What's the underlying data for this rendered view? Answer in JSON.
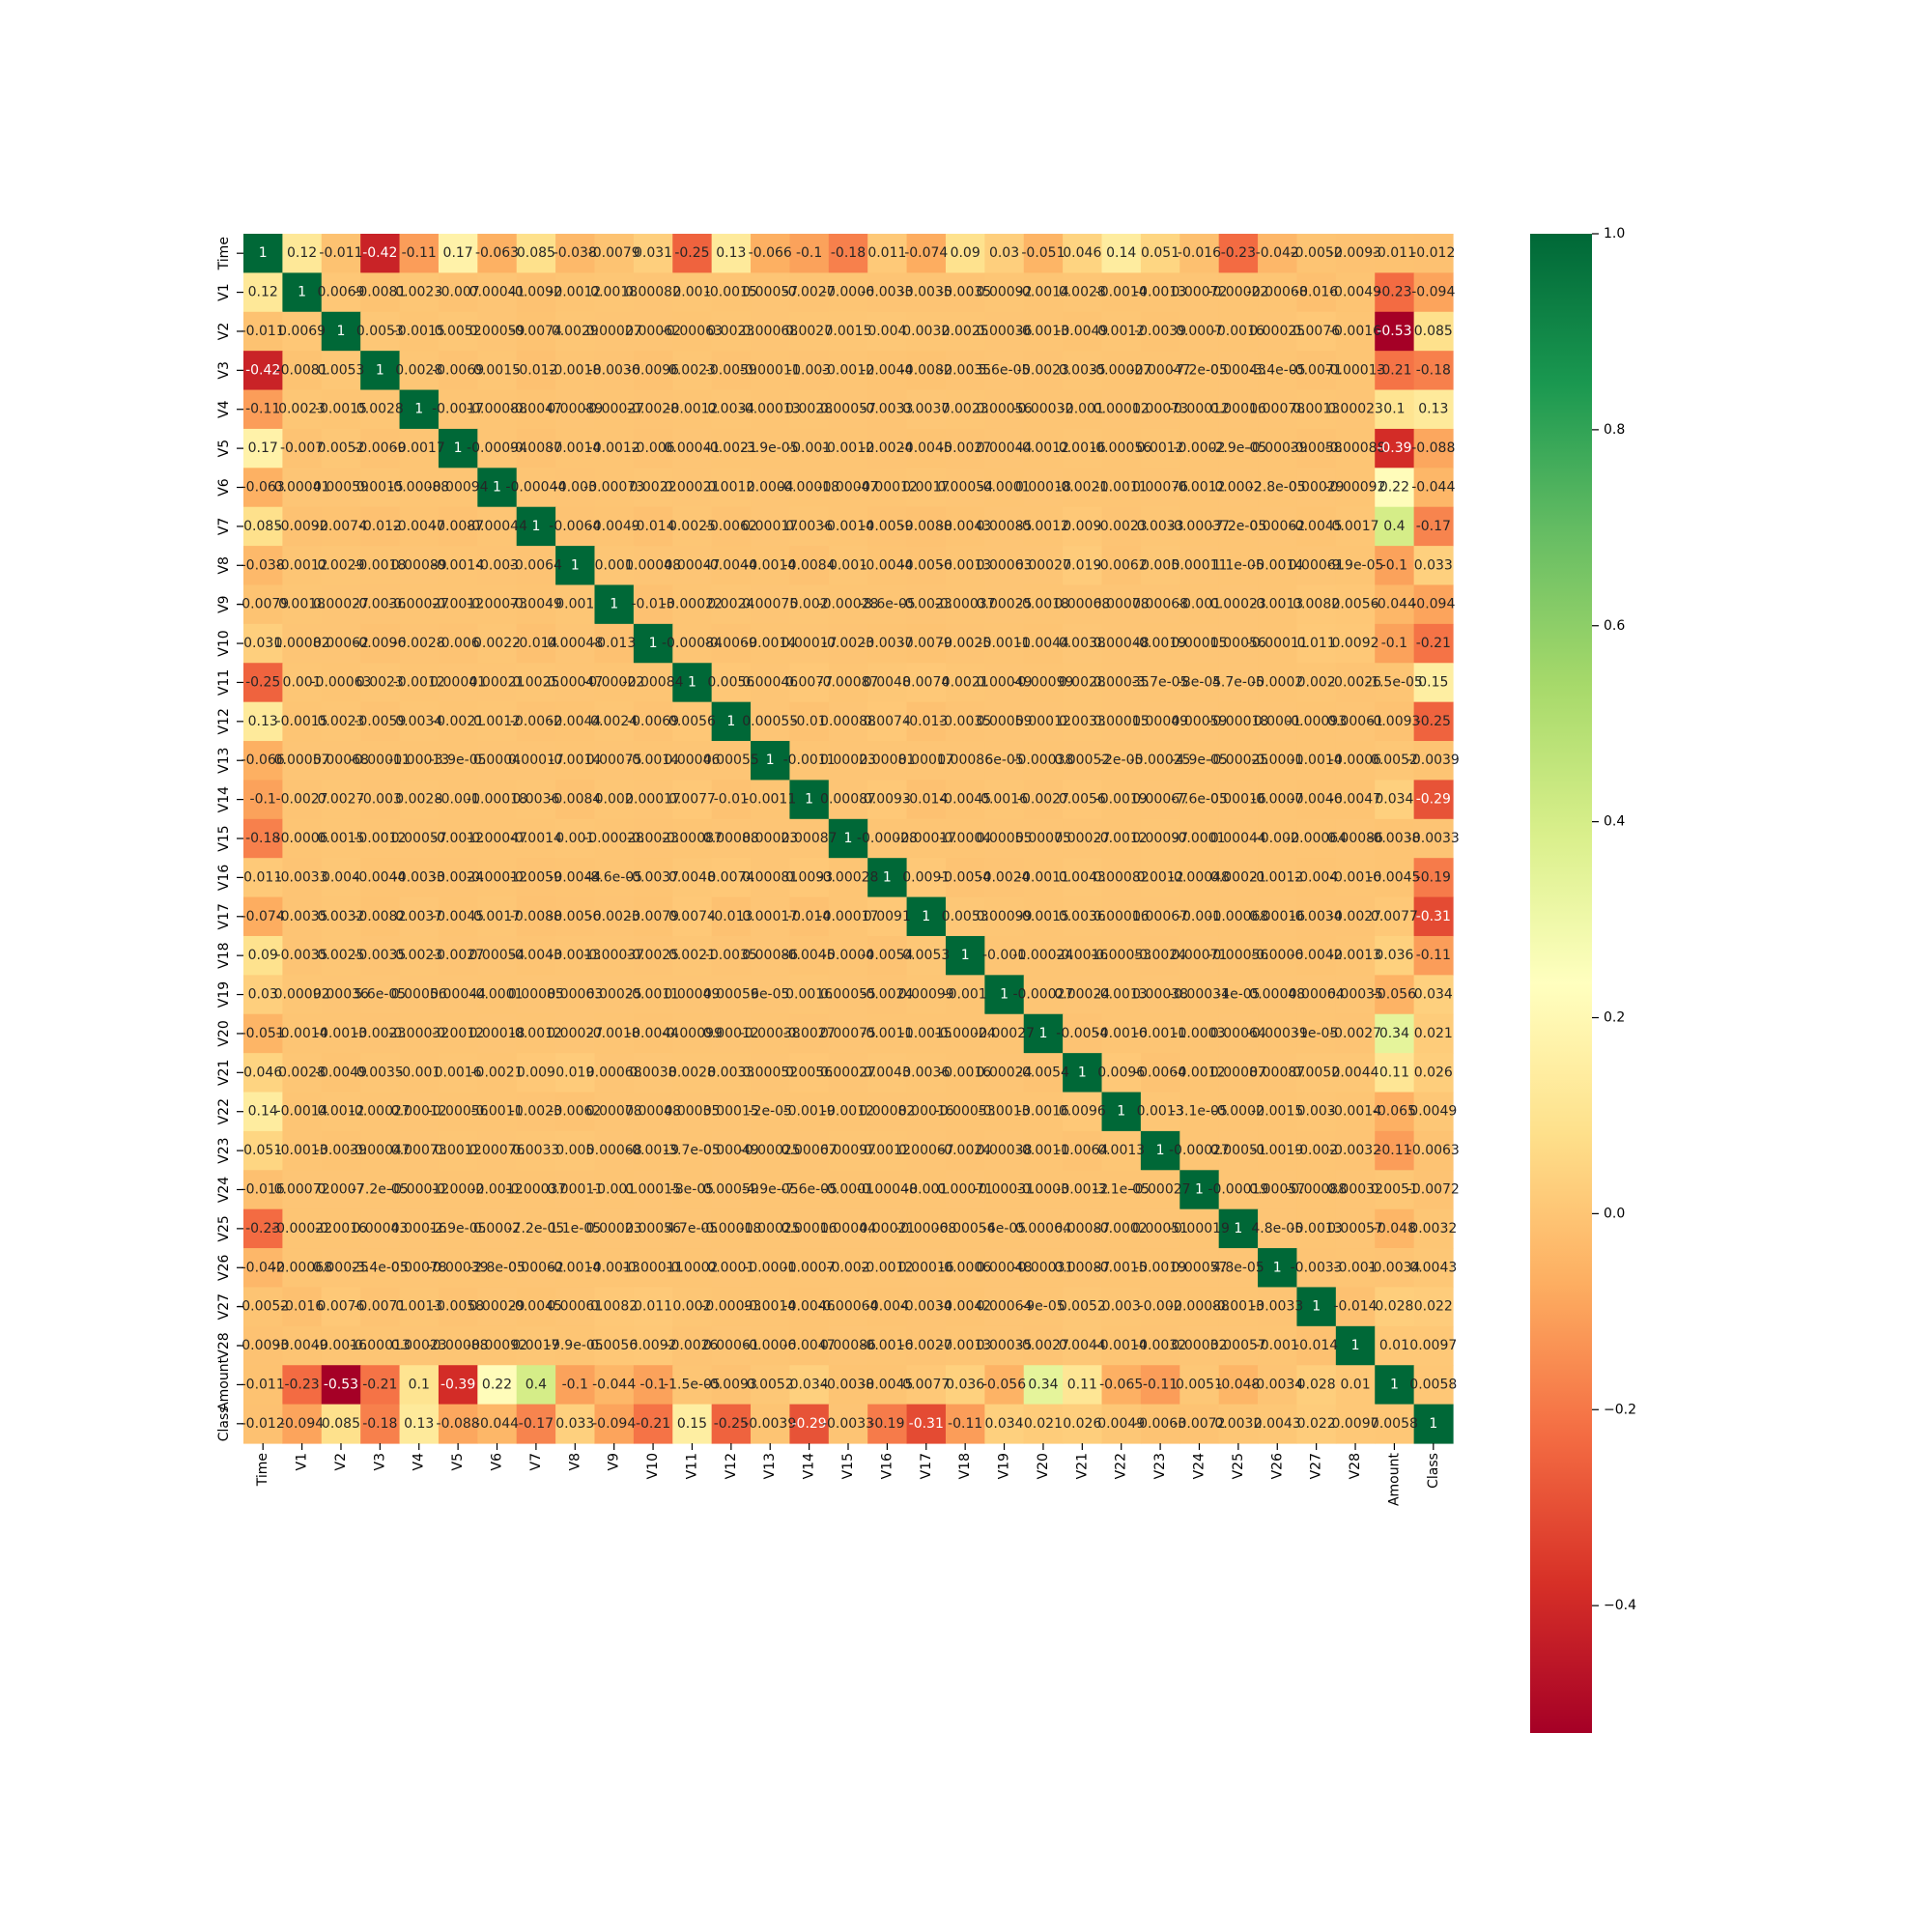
{
  "chart_data": {
    "type": "heatmap",
    "title": "",
    "xlabel": "",
    "ylabel": "",
    "labels": [
      "Time",
      "V1",
      "V2",
      "V3",
      "V4",
      "V5",
      "V6",
      "V7",
      "V8",
      "V9",
      "V10",
      "V11",
      "V12",
      "V13",
      "V14",
      "V15",
      "V16",
      "V17",
      "V18",
      "V19",
      "V20",
      "V21",
      "V22",
      "V23",
      "V24",
      "V25",
      "V26",
      "V27",
      "V28",
      "Amount",
      "Class"
    ],
    "colormap": "RdYlGn",
    "vmin": -0.53,
    "vmax": 1.0,
    "colorbar_ticks": [
      {
        "value": 1.0,
        "label": "1.0"
      },
      {
        "value": 0.8,
        "label": "0.8"
      },
      {
        "value": 0.6,
        "label": "0.6"
      },
      {
        "value": 0.4,
        "label": "0.4"
      },
      {
        "value": 0.2,
        "label": "0.2"
      },
      {
        "value": 0.0,
        "label": "0.0"
      },
      {
        "value": -0.2,
        "label": "−0.2"
      },
      {
        "value": -0.4,
        "label": "−0.4"
      }
    ],
    "matrix": [
      [
        "1",
        "0.12",
        "-0.011",
        "-0.42",
        "-0.11",
        "0.17",
        "-0.063",
        "0.085",
        "-0.038",
        "-0.0079",
        "0.031",
        "-0.25",
        "0.13",
        "-0.066",
        "-0.1",
        "-0.18",
        "0.011",
        "-0.074",
        "0.09",
        "0.03",
        "-0.051",
        "0.046",
        "0.14",
        "0.051",
        "-0.016",
        "-0.23",
        "-0.042",
        "-0.0052",
        "-0.0093",
        "-0.011",
        "-0.012"
      ],
      [
        "0.12",
        "1",
        "0.0069",
        "-0.0081",
        "0.0023",
        "-0.007",
        "0.00041",
        "-0.0092",
        "-0.0012",
        "0.0018",
        "0.00082",
        "0.001",
        "-0.0015",
        "0.00057",
        "-0.0027",
        "-0.0006",
        "-0.0033",
        "-0.0035",
        "-0.0035",
        "0.00092",
        "-0.0014",
        "0.0028",
        "-0.0014",
        "-0.0013",
        "0.00072",
        "-0.00022",
        "-0.00068",
        "-0.016",
        "-0.0049",
        "-0.23",
        "-0.094"
      ],
      [
        "-0.011",
        "0.0069",
        "1",
        "0.0053",
        "-0.0015",
        "0.0052",
        "0.00059",
        "-0.0074",
        "0.0029",
        "0.00027",
        "0.00062",
        "-0.00063",
        "0.0023",
        "0.00068",
        "0.0027",
        "0.0015",
        "0.004",
        "0.0032",
        "0.0025",
        "0.00036",
        "-0.0013",
        "-0.0049",
        "0.0012",
        "-0.0039",
        "0.0007",
        "-0.0016",
        "0.00025",
        "0.0076",
        "-0.0016",
        "-0.53",
        "0.085"
      ],
      [
        "-0.42",
        "-0.0081",
        "0.0053",
        "1",
        "0.0028",
        "-0.0069",
        "0.0015",
        "-0.012",
        "-0.0018",
        "-0.0036",
        "-0.0096",
        "0.0023",
        "-0.0059",
        "-0.00011",
        "-0.003",
        "-0.0012",
        "-0.0044",
        "-0.0082",
        "-0.0035",
        "5.6e-05",
        "-0.0023",
        "0.0035",
        "-0.00027",
        "-0.00047",
        "-7.2e-05",
        "0.00043",
        "-3.4e-05",
        "-0.0071",
        "-0.00013",
        "-0.21",
        "-0.18"
      ],
      [
        "-0.11",
        "0.0023",
        "-0.0015",
        "0.0028",
        "1",
        "-0.0017",
        "-0.00088",
        "-0.0047",
        "0.00089",
        "-0.00027",
        "-0.0028",
        "-0.0012",
        "0.0034",
        "-0.00013",
        "0.0028",
        "0.00057",
        "-0.0033",
        "0.0037",
        "0.0023",
        "0.00056",
        "-0.00032",
        "-0.001",
        "0.00012",
        "0.00073",
        "-0.00012",
        "0.00016",
        "0.00078",
        "0.0013",
        "0.00023",
        "0.1",
        "0.13"
      ],
      [
        "0.17",
        "-0.007",
        "0.0052",
        "-0.0069",
        "-0.0017",
        "1",
        "-0.00094",
        "-0.0087",
        "-0.0014",
        "-0.0012",
        "-0.006",
        "0.00041",
        "-0.0021",
        "-3.9e-05",
        "-0.001",
        "-0.0012",
        "-0.0024",
        "-0.0045",
        "-0.0027",
        "0.00044",
        "-0.0012",
        "0.0016",
        "-0.00056",
        "0.0012",
        "-0.0002",
        "-2.9e-05",
        "-0.00039",
        "-0.0058",
        "-0.00088",
        "-0.39",
        "-0.088"
      ],
      [
        "-0.063",
        "0.00041",
        "0.00059",
        "0.0015",
        "-0.00088",
        "-0.00094",
        "1",
        "-0.00044",
        "-0.003",
        "-0.00073",
        "0.0022",
        "0.00021",
        "0.0012",
        "0.0004",
        "-0.00018",
        "-0.00047",
        "-0.00012",
        "0.0017",
        "0.00054",
        "-0.0001",
        "0.00018",
        "-0.0021",
        "-0.0011",
        "0.00076",
        "-0.0012",
        "0.0002",
        "-2.8e-05",
        "0.00029",
        "-0.00092",
        "0.22",
        "-0.044"
      ],
      [
        "0.085",
        "-0.0092",
        "-0.0074",
        "-0.012",
        "-0.0047",
        "-0.0087",
        "-0.00044",
        "1",
        "-0.0064",
        "-0.0049",
        "-0.014",
        "0.0025",
        "-0.0062",
        "0.00017",
        "0.0036",
        "-0.0014",
        "-0.0059",
        "-0.0088",
        "-0.0043",
        "0.00085",
        "-0.0012",
        "0.009",
        "-0.0023",
        "0.0033",
        "-0.00037",
        "-7.2e-05",
        "0.00062",
        "-0.0045",
        "0.0017",
        "0.4",
        "-0.17"
      ],
      [
        "-0.038",
        "-0.0012",
        "0.0029",
        "-0.0018",
        "0.00089",
        "-0.0014",
        "-0.003",
        "-0.0064",
        "1",
        "0.001",
        "0.00048",
        "0.00047",
        "-0.0044",
        "-0.0014",
        "-0.0084",
        "0.001",
        "-0.0044",
        "-0.0056",
        "-0.0013",
        "0.00063",
        "0.00027",
        "0.019",
        "-0.0062",
        "0.005",
        "0.00011",
        "1.1e-05",
        "-0.0014",
        "0.00061",
        "-9.9e-05",
        "-0.1",
        "0.033"
      ],
      [
        "-0.0079",
        "0.0018",
        "0.00027",
        "-0.0036",
        "-0.00027",
        "-0.0012",
        "-0.00073",
        "-0.0049",
        "0.001",
        "1",
        "-0.013",
        "-0.00022",
        "0.0024",
        "0.00075",
        "0.002",
        "-0.00028",
        "-8.6e-05",
        "-0.0023",
        "-0.00037",
        "0.00025",
        "-0.0018",
        "0.00068",
        "0.00078",
        "0.00068",
        "-0.001",
        "0.00023",
        "-0.0013",
        "0.0082",
        "0.0056",
        "-0.044",
        "-0.094"
      ],
      [
        "0.031",
        "0.00082",
        "0.00062",
        "-0.0096",
        "-0.0028",
        "-0.006",
        "0.0022",
        "-0.014",
        "0.00048",
        "-0.013",
        "1",
        "-0.00084",
        "-0.0069",
        "-0.0014",
        "0.00017",
        "-0.0023",
        "-0.0037",
        "-0.0079",
        "-0.0025",
        "-0.0011",
        "-0.0044",
        "0.0038",
        "0.00048",
        "-0.0019",
        "0.00015",
        "0.00056",
        "-0.00011",
        "0.011",
        "0.0092",
        "-0.1",
        "-0.21"
      ],
      [
        "-0.25",
        "0.001",
        "-0.00063",
        "0.0023",
        "-0.0012",
        "0.00041",
        "0.00021",
        "0.0025",
        "0.00047",
        "-0.00022",
        "-0.00084",
        "1",
        "0.0056",
        "0.00046",
        "0.0077",
        "-0.00087",
        "0.0048",
        "0.0074",
        "0.0021",
        "0.00049",
        "-0.00099",
        "0.0028",
        "0.00035",
        "-3.7e-05",
        "-8e-05",
        "4.7e-05",
        "-0.0002",
        "0.002",
        "-0.0026",
        "-1.5e-05",
        "0.15"
      ],
      [
        "0.13",
        "-0.0015",
        "0.0023",
        "-0.0059",
        "0.0034",
        "-0.0021",
        "0.0012",
        "-0.0062",
        "-0.0044",
        "0.0024",
        "-0.0069",
        "0.0056",
        "1",
        "0.00055",
        "-0.01",
        "0.00088",
        "0.0074",
        "-0.013",
        "-0.0035",
        "0.00059",
        "0.00012",
        "0.0033",
        "0.00015",
        "0.00049",
        "0.00059",
        "-0.00018",
        "0.0001",
        "-0.00093",
        "0.00061",
        "-0.0093",
        "-0.25"
      ],
      [
        "-0.066",
        "0.00057",
        "0.00068",
        "-0.00011",
        "-0.00013",
        "-3.9e-05",
        "0.0004",
        "0.00017",
        "-0.0014",
        "0.00075",
        "-0.0014",
        "0.00046",
        "0.00055",
        "1",
        "-0.0011",
        "0.00023",
        "0.00081",
        "0.00017",
        "0.00086",
        "6e-05",
        "-0.00038",
        "0.00052",
        "-2e-05",
        "-0.00025",
        "-4.9e-05",
        "-0.00025",
        "-0.0001",
        "-0.0014",
        "-0.0006",
        "0.0052",
        "-0.0039"
      ],
      [
        "-0.1",
        "-0.0027",
        "0.0027",
        "-0.003",
        "0.0028",
        "-0.001",
        "-0.00018",
        "0.0036",
        "-0.0084",
        "0.002",
        "0.00017",
        "0.0077",
        "-0.01",
        "-0.0011",
        "1",
        "0.00087",
        "0.0093",
        "-0.014",
        "-0.0045",
        "0.0016",
        "-0.0027",
        "0.0056",
        "-0.0019",
        "0.00067",
        "-7.6e-05",
        "0.00016",
        "-0.0007",
        "-0.0046",
        "-0.0047",
        "0.034",
        "-0.29"
      ],
      [
        "-0.18",
        "-0.0006",
        "0.0015",
        "-0.0012",
        "0.00057",
        "-0.0012",
        "-0.00047",
        "-0.0014",
        "0.001",
        "-0.00028",
        "-0.0023",
        "-0.00087",
        "0.00088",
        "0.00023",
        "0.00087",
        "1",
        "-0.00028",
        "-0.00017",
        "-0.0004",
        "0.00055",
        "0.00075",
        "0.00027",
        "-0.0012",
        "0.00097",
        "-0.0001",
        "0.00044",
        "-0.002",
        "-0.00064",
        "0.00086",
        "-0.0038",
        "-0.0033"
      ],
      [
        "0.011",
        "-0.0033",
        "0.004",
        "-0.0044",
        "-0.0033",
        "-0.0024",
        "-0.00012",
        "-0.0059",
        "-0.0044",
        "-8.6e-05",
        "-0.0037",
        "0.0048",
        "0.0074",
        "0.00081",
        "0.0093",
        "-0.00028",
        "1",
        "0.0091",
        "-0.0054",
        "-0.0024",
        "-0.0011",
        "0.0043",
        "0.00082",
        "0.0012",
        "-0.00048",
        "0.00021",
        "-0.0012",
        "-0.004",
        "-0.0016",
        "-0.0045",
        "-0.19"
      ],
      [
        "-0.074",
        "-0.0035",
        "0.0032",
        "-0.0082",
        "0.0037",
        "-0.0045",
        "0.0017",
        "-0.0088",
        "-0.0056",
        "-0.0023",
        "-0.0079",
        "0.0074",
        "-0.013",
        "0.00017",
        "-0.014",
        "-0.00017",
        "0.0091",
        "1",
        "0.0053",
        "0.00099",
        "-0.0015",
        "0.0036",
        "0.00016",
        "0.00067",
        "-0.001",
        "-0.00068",
        "0.00016",
        "-0.0034",
        "-0.0027",
        "0.0077",
        "-0.31"
      ],
      [
        "0.09",
        "-0.0035",
        "0.0025",
        "-0.0035",
        "0.0023",
        "-0.0027",
        "0.00054",
        "-0.0043",
        "-0.0013",
        "-0.00037",
        "-0.0025",
        "0.0021",
        "-0.0035",
        "0.00086",
        "-0.0045",
        "-0.0004",
        "-0.0054",
        "0.0053",
        "1",
        "-0.001",
        "-0.00024",
        "-0.0016",
        "-0.00053",
        "-0.0024",
        "0.00071",
        "-0.00056",
        "-0.0006",
        "-0.0042",
        "-0.0013",
        "0.036",
        "-0.11"
      ],
      [
        "0.03",
        "0.00092",
        "0.00036",
        "5.6e-05",
        "0.00056",
        "0.00044",
        "-0.0001",
        "0.00085",
        "0.00063",
        "0.00025",
        "-0.0011",
        "0.00049",
        "0.00059",
        "6e-05",
        "0.0016",
        "0.00055",
        "-0.0024",
        "0.00099",
        "-0.001",
        "1",
        "-0.00027",
        "0.00024",
        "-0.0013",
        "0.00038",
        "-0.00031",
        "-4e-05",
        "0.00048",
        "0.00064",
        "0.00035",
        "-0.056",
        "0.034"
      ],
      [
        "-0.051",
        "-0.0014",
        "-0.0013",
        "-0.0023",
        "-0.00032",
        "-0.0012",
        "0.00018",
        "-0.0012",
        "0.00027",
        "-0.0018",
        "-0.0044",
        "-0.00099",
        "0.00012",
        "-0.00038",
        "-0.0027",
        "0.00075",
        "-0.0011",
        "-0.0015",
        "-0.00024",
        "-0.00027",
        "1",
        "-0.0054",
        "-0.0016",
        "-0.0011",
        "-0.0003",
        "0.00064",
        "-0.00031",
        "-9e-05",
        "-0.0027",
        "0.34",
        "0.021"
      ],
      [
        "0.046",
        "0.0028",
        "-0.0049",
        "0.0035",
        "-0.001",
        "0.0016",
        "-0.0021",
        "0.009",
        "0.019",
        "0.00068",
        "0.0038",
        "0.0028",
        "0.0033",
        "0.00052",
        "0.0056",
        "0.00027",
        "0.0043",
        "0.0036",
        "-0.0016",
        "0.00024",
        "-0.0054",
        "1",
        "0.0096",
        "-0.0064",
        "-0.0012",
        "0.00087",
        "0.00087",
        "0.0052",
        "0.0044",
        "0.11",
        "0.026"
      ],
      [
        "0.14",
        "-0.0014",
        "0.0012",
        "-0.00027",
        "0.00012",
        "-0.00056",
        "-0.0011",
        "-0.0023",
        "-0.0062",
        "0.00078",
        "0.00048",
        "0.00035",
        "0.00015",
        "-2e-05",
        "-0.0019",
        "-0.0012",
        "0.00082",
        "0.00016",
        "-0.00053",
        "-0.0013",
        "-0.0016",
        "0.0096",
        "1",
        "0.0013",
        "-3.1e-05",
        "-0.0002",
        "-0.0015",
        "0.003",
        "-0.0014",
        "-0.065",
        "0.0049"
      ],
      [
        "0.051",
        "-0.0013",
        "-0.0039",
        "-0.00047",
        "0.00073",
        "0.0012",
        "0.00076",
        "0.0033",
        "0.005",
        "0.00068",
        "-0.0019",
        "-3.7e-05",
        "0.00049",
        "-0.00025",
        "0.00067",
        "0.00097",
        "0.0012",
        "0.00067",
        "-0.0024",
        "0.00038",
        "-0.0011",
        "-0.0064",
        "0.0013",
        "1",
        "-0.00027",
        "0.00051",
        "-0.0019",
        "-0.002",
        "-0.0032",
        "-0.11",
        "-0.0063"
      ],
      [
        "-0.016",
        "0.00072",
        "0.0007",
        "-7.2e-05",
        "-0.00012",
        "-0.0002",
        "-0.0012",
        "-0.00037",
        "0.00011",
        "-0.001",
        "0.00015",
        "-8e-05",
        "0.00059",
        "-4.9e-05",
        "-7.6e-05",
        "-0.0001",
        "-0.00048",
        "-0.001",
        "0.00071",
        "-0.00031",
        "-0.0003",
        "-0.0012",
        "-3.1e-05",
        "-0.00027",
        "1",
        "-0.00019",
        "0.00057",
        "-0.00088",
        "0.00032",
        "0.0051",
        "-0.0072"
      ],
      [
        "-0.23",
        "-0.00022",
        "-0.0016",
        "0.00043",
        "0.00016",
        "-2.9e-05",
        "0.0002",
        "-7.2e-05",
        "1.1e-05",
        "0.00023",
        "0.00056",
        "4.7e-05",
        "-0.00018",
        "-0.00025",
        "0.00016",
        "0.00044",
        "0.00021",
        "-0.00068",
        "-0.00056",
        "-4e-05",
        "0.00064",
        "0.00087",
        "-0.0002",
        "0.00051",
        "-0.00019",
        "1",
        "4.8e-05",
        "-0.0013",
        "0.00057",
        "-0.048",
        "0.0032"
      ],
      [
        "-0.042",
        "-0.00068",
        "0.00025",
        "-3.4e-05",
        "0.00078",
        "-0.00039",
        "-2.8e-05",
        "0.00062",
        "-0.0014",
        "-0.0013",
        "-0.00011",
        "-0.0002",
        "0.0001",
        "-0.0001",
        "-0.0007",
        "-0.002",
        "-0.0012",
        "0.00016",
        "-0.0006",
        "0.00048",
        "-0.00031",
        "0.00087",
        "-0.0015",
        "-0.0019",
        "0.00057",
        "4.8e-05",
        "1",
        "-0.0033",
        "-0.001",
        "-0.0034",
        "0.0043"
      ],
      [
        "-0.0052",
        "-0.016",
        "0.0076",
        "-0.0071",
        "0.0013",
        "-0.0058",
        "0.00029",
        "-0.0045",
        "0.00061",
        "0.0082",
        "0.011",
        "0.002",
        "-0.00093",
        "-0.0014",
        "-0.0046",
        "-0.00064",
        "-0.004",
        "-0.0034",
        "-0.0042",
        "0.00064",
        "-9e-05",
        "0.0052",
        "0.003",
        "-0.002",
        "-0.00088",
        "-0.0013",
        "-0.0033",
        "1",
        "-0.014",
        "0.028",
        "0.022"
      ],
      [
        "-0.0093",
        "-0.0049",
        "-0.0016",
        "-0.00013",
        "0.00023",
        "-0.00088",
        "-0.00092",
        "0.0017",
        "-9.9e-05",
        "0.0056",
        "0.0092",
        "-0.0026",
        "0.00061",
        "-0.0006",
        "-0.0047",
        "0.00086",
        "-0.0016",
        "-0.0027",
        "-0.0013",
        "0.00035",
        "-0.0027",
        "0.0044",
        "-0.0014",
        "-0.0032",
        "0.00032",
        "0.00057",
        "-0.001",
        "-0.014",
        "1",
        "0.01",
        "0.0097"
      ],
      [
        "-0.011",
        "-0.23",
        "-0.53",
        "-0.21",
        "0.1",
        "-0.39",
        "0.22",
        "0.4",
        "-0.1",
        "-0.044",
        "-0.1",
        "-1.5e-05",
        "-0.0093",
        "0.0052",
        "0.034",
        "-0.0038",
        "-0.0045",
        "0.0077",
        "0.036",
        "-0.056",
        "0.34",
        "0.11",
        "-0.065",
        "-0.11",
        "0.0051",
        "-0.048",
        "-0.0034",
        "0.028",
        "0.01",
        "1",
        "0.0058"
      ],
      [
        "-0.012",
        "-0.094",
        "0.085",
        "-0.18",
        "0.13",
        "-0.088",
        "-0.044",
        "-0.17",
        "0.033",
        "-0.094",
        "-0.21",
        "0.15",
        "-0.25",
        "-0.0039",
        "-0.29",
        "-0.0033",
        "-0.19",
        "-0.31",
        "-0.11",
        "0.034",
        "0.021",
        "0.026",
        "0.0049",
        "-0.0063",
        "-0.0072",
        "0.0032",
        "0.0043",
        "0.022",
        "0.0097",
        "0.0058",
        "1"
      ]
    ]
  }
}
